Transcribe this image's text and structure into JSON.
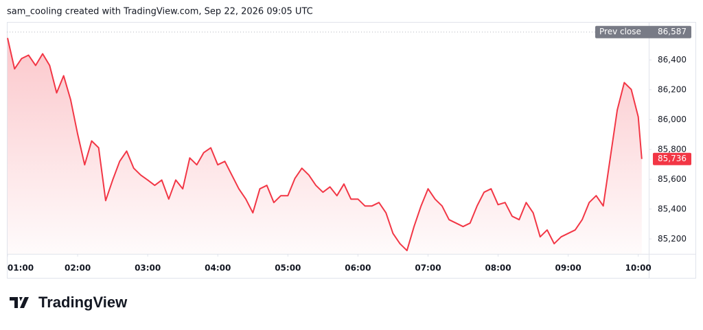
{
  "header": "sam_cooling created with TradingView.com, Sep 22, 2026 09:05 UTC",
  "brand": "TradingView",
  "chart_data": {
    "type": "area",
    "color": "#f23645",
    "x": [
      1.0,
      1.1,
      1.2,
      1.3,
      1.4,
      1.5,
      1.6,
      1.7,
      1.8,
      1.9,
      2.0,
      2.1,
      2.2,
      2.3,
      2.4,
      2.5,
      2.6,
      2.7,
      2.8,
      2.9,
      3.0,
      3.1,
      3.2,
      3.3,
      3.4,
      3.5,
      3.6,
      3.7,
      3.8,
      3.9,
      4.0,
      4.1,
      4.2,
      4.3,
      4.4,
      4.5,
      4.6,
      4.7,
      4.8,
      4.9,
      5.0,
      5.1,
      5.2,
      5.3,
      5.4,
      5.5,
      5.6,
      5.7,
      5.8,
      5.9,
      6.0,
      6.1,
      6.2,
      6.3,
      6.4,
      6.5,
      6.6,
      6.7,
      6.8,
      6.9,
      7.0,
      7.1,
      7.2,
      7.3,
      7.4,
      7.5,
      7.6,
      7.7,
      7.8,
      7.9,
      8.0,
      8.1,
      8.2,
      8.3,
      8.4,
      8.5,
      8.6,
      8.7,
      8.8,
      8.9,
      9.0,
      9.1,
      9.2,
      9.3,
      9.4,
      9.5,
      9.6,
      9.7,
      9.8,
      9.9,
      10.0,
      10.05
    ],
    "values": [
      86547,
      86340,
      86409,
      86432,
      86363,
      86441,
      86363,
      86179,
      86294,
      86133,
      85903,
      85697,
      85857,
      85811,
      85457,
      85595,
      85720,
      85789,
      85674,
      85628,
      85595,
      85559,
      85595,
      85467,
      85595,
      85536,
      85743,
      85697,
      85779,
      85811,
      85697,
      85720,
      85628,
      85536,
      85467,
      85375,
      85536,
      85559,
      85444,
      85490,
      85490,
      85605,
      85674,
      85628,
      85559,
      85513,
      85549,
      85490,
      85568,
      85467,
      85467,
      85421,
      85421,
      85444,
      85375,
      85237,
      85168,
      85122,
      85283,
      85421,
      85536,
      85467,
      85421,
      85329,
      85306,
      85283,
      85306,
      85421,
      85513,
      85536,
      85430,
      85444,
      85352,
      85329,
      85444,
      85375,
      85214,
      85260,
      85168,
      85214,
      85237,
      85260,
      85329,
      85444,
      85490,
      85421,
      85743,
      86064,
      86248,
      86202,
      86018,
      85736
    ],
    "xlim": [
      0.99,
      10.15
    ],
    "ylim": [
      85100,
      86650
    ],
    "xticks": [
      {
        "value": 1,
        "label": "01:00"
      },
      {
        "value": 2,
        "label": "02:00"
      },
      {
        "value": 3,
        "label": "03:00"
      },
      {
        "value": 4,
        "label": "04:00"
      },
      {
        "value": 5,
        "label": "05:00"
      },
      {
        "value": 6,
        "label": "06:00"
      },
      {
        "value": 7,
        "label": "07:00"
      },
      {
        "value": 8,
        "label": "08:00"
      },
      {
        "value": 9,
        "label": "09:00"
      },
      {
        "value": 10,
        "label": "10:00"
      }
    ],
    "yticks": [
      {
        "value": 85200,
        "label": "85,200"
      },
      {
        "value": 85400,
        "label": "85,400"
      },
      {
        "value": 85600,
        "label": "85,600"
      },
      {
        "value": 85800,
        "label": "85,800"
      },
      {
        "value": 86000,
        "label": "86,000"
      },
      {
        "value": 86200,
        "label": "86,200"
      },
      {
        "value": 86400,
        "label": "86,400"
      }
    ],
    "prev_close": {
      "name": "Prev close",
      "value": 86587,
      "label": "86,587"
    },
    "last_price": {
      "value": 85736,
      "label": "85,736"
    }
  }
}
